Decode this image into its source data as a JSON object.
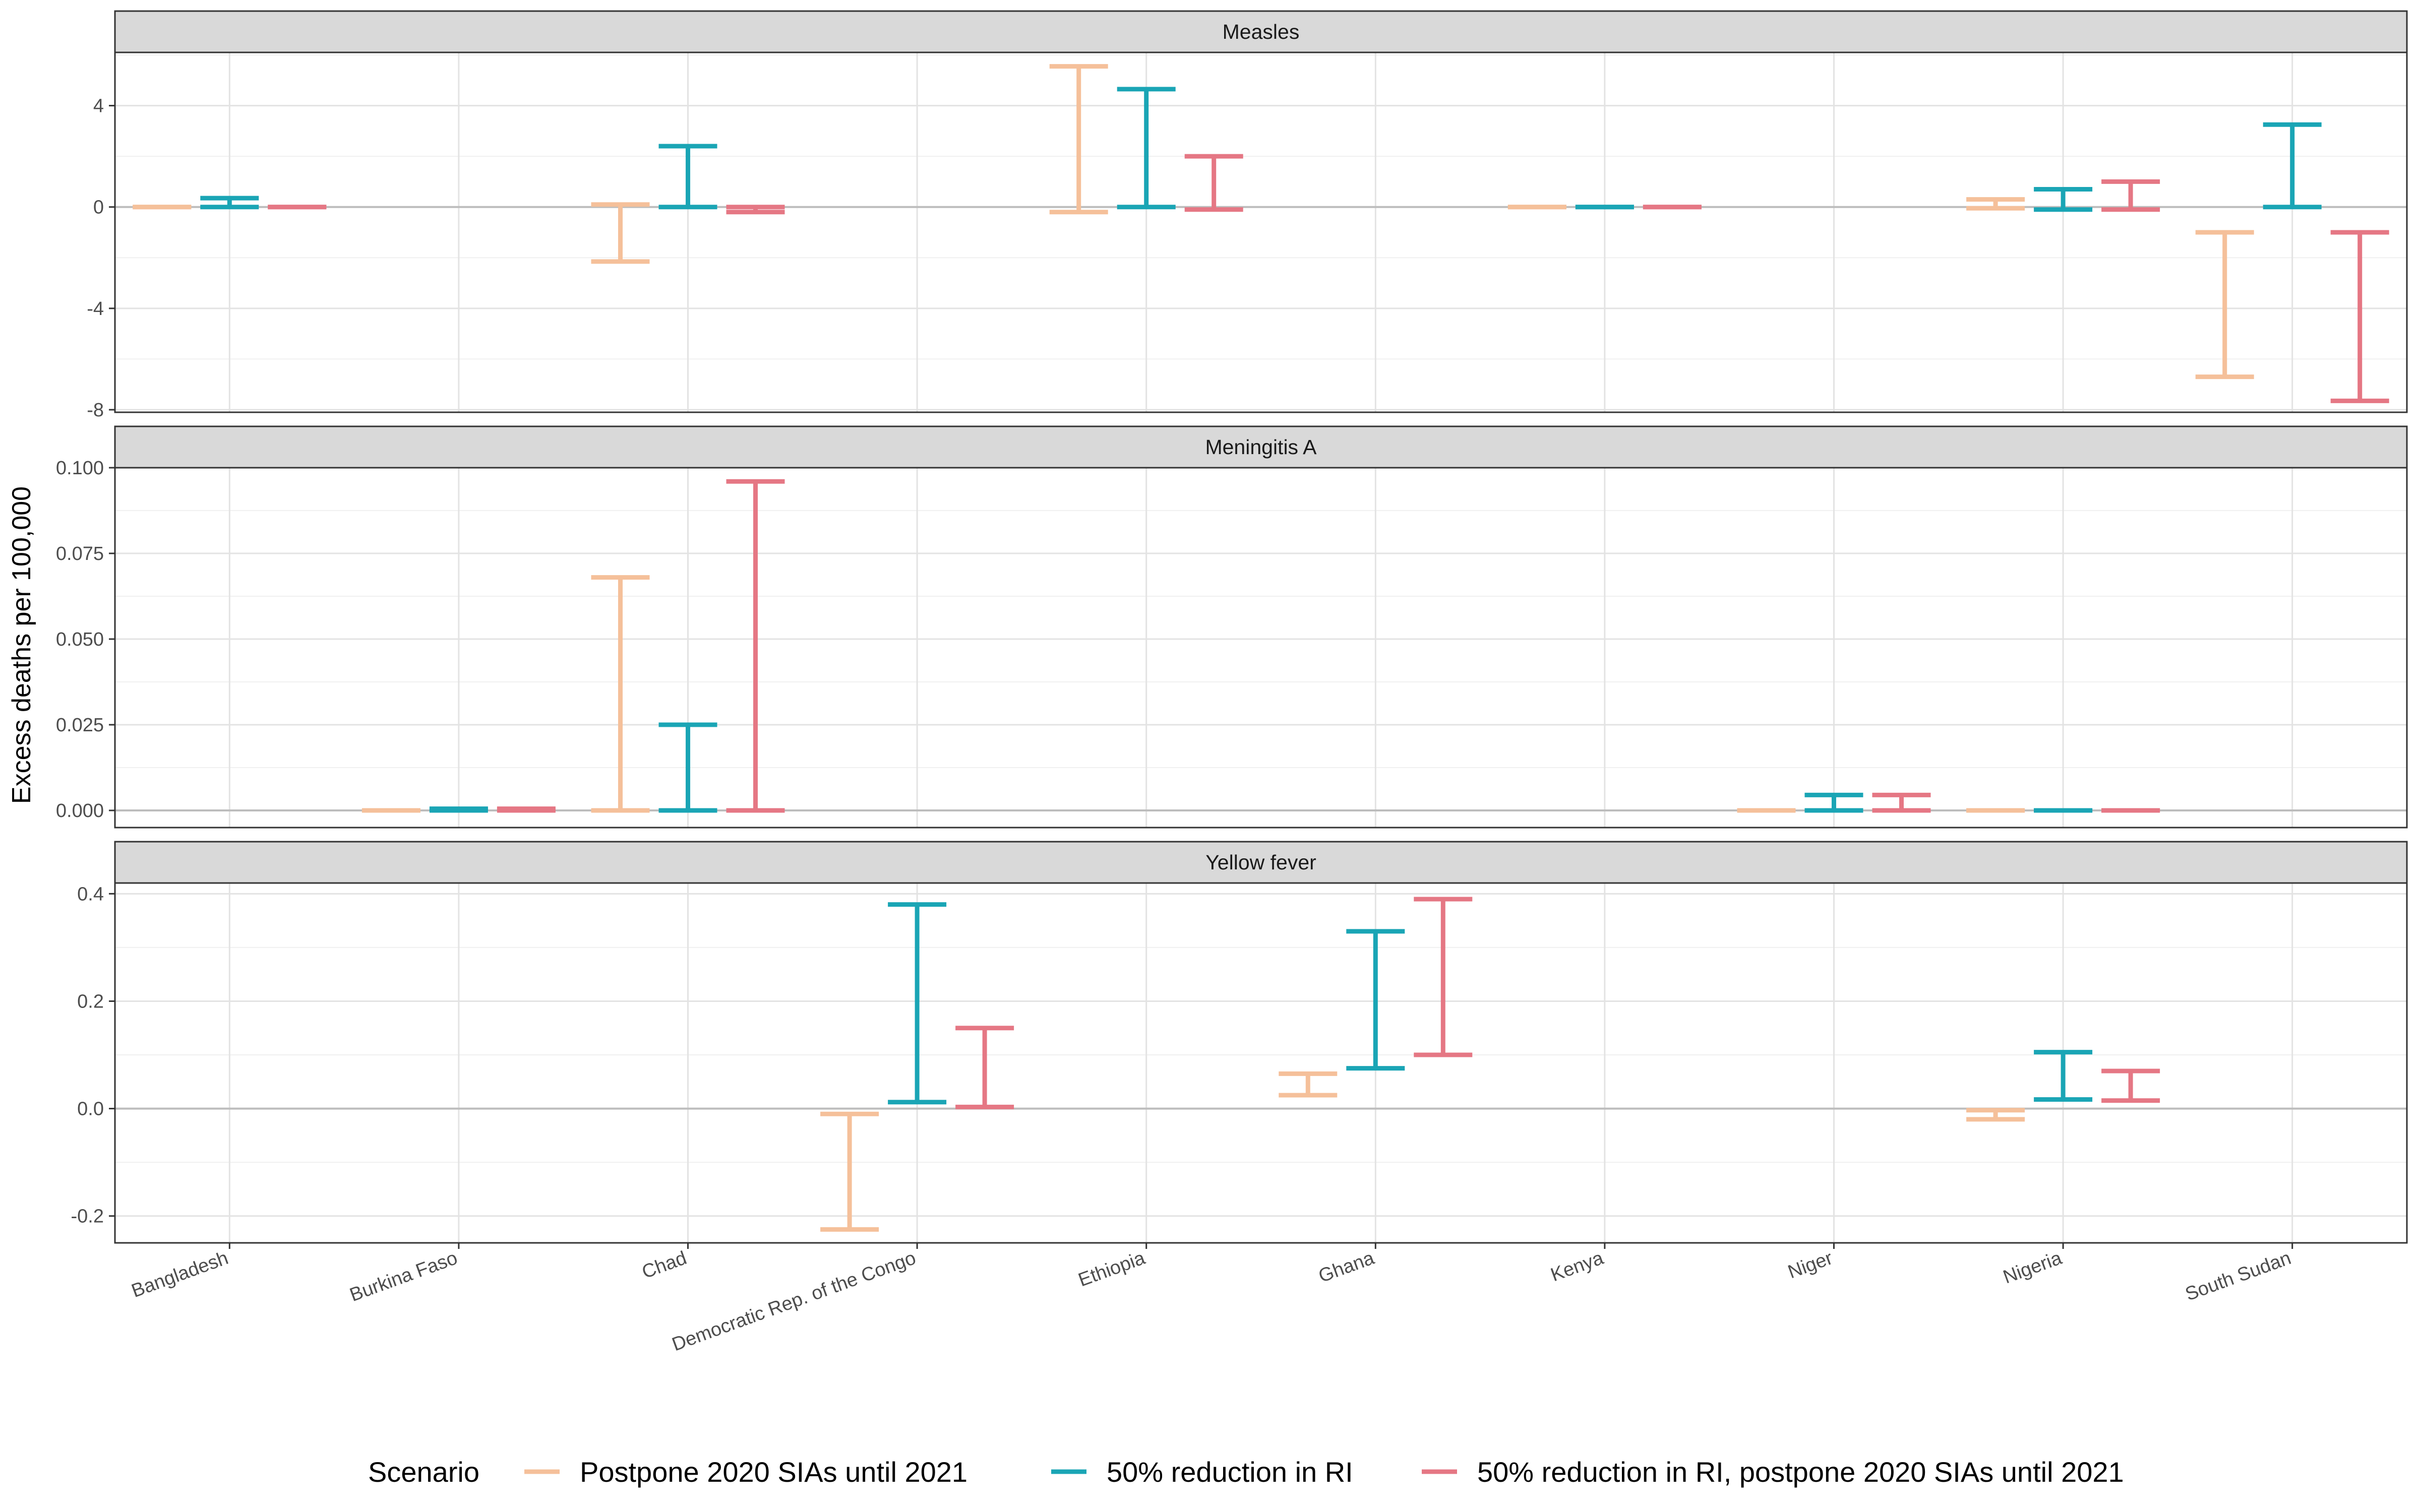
{
  "chart_data": {
    "type": "errorbar",
    "ylabel": "Excess deaths per 100,000",
    "xlabel": "",
    "categories": [
      "Bangladesh",
      "Burkina Faso",
      "Chad",
      "Democratic Rep. of the Congo",
      "Ethiopia",
      "Ghana",
      "Kenya",
      "Niger",
      "Nigeria",
      "South Sudan"
    ],
    "legend": {
      "title": "Scenario",
      "position": "bottom",
      "entries": [
        {
          "name": "Postpone 2020 SIAs until 2021",
          "color": "#F5C09A"
        },
        {
          "name": "50% reduction in RI",
          "color": "#1AA5B5"
        },
        {
          "name": "50% reduction in RI, postpone 2020 SIAs until 2021",
          "color": "#E57784"
        }
      ]
    },
    "grid": true,
    "panels": [
      {
        "title": "Measles",
        "ylim": [
          -8.1,
          6.1
        ],
        "yticks": [
          {
            "v": 4,
            "label": "4"
          },
          {
            "v": 0,
            "label": "0"
          },
          {
            "v": -4,
            "label": "-4"
          },
          {
            "v": -8,
            "label": "-8"
          }
        ],
        "ybreaks_minor": [
          6,
          2,
          -2,
          -6
        ],
        "bars": [
          {
            "category": "Bangladesh",
            "series": 0,
            "low": 0.0,
            "high": 0.0
          },
          {
            "category": "Bangladesh",
            "series": 1,
            "low": 0.0,
            "high": 0.35
          },
          {
            "category": "Bangladesh",
            "series": 2,
            "low": 0.0,
            "high": 0.0
          },
          {
            "category": "Chad",
            "series": 0,
            "low": -2.15,
            "high": 0.1
          },
          {
            "category": "Chad",
            "series": 1,
            "low": 0.0,
            "high": 2.4
          },
          {
            "category": "Chad",
            "series": 2,
            "low": -0.2,
            "high": 0.0
          },
          {
            "category": "Ethiopia",
            "series": 0,
            "low": -0.2,
            "high": 5.55
          },
          {
            "category": "Ethiopia",
            "series": 1,
            "low": 0.0,
            "high": 4.65
          },
          {
            "category": "Ethiopia",
            "series": 2,
            "low": -0.1,
            "high": 2.0
          },
          {
            "category": "Kenya",
            "series": 0,
            "low": 0.0,
            "high": 0.0
          },
          {
            "category": "Kenya",
            "series": 1,
            "low": 0.0,
            "high": 0.0
          },
          {
            "category": "Kenya",
            "series": 2,
            "low": 0.0,
            "high": 0.0
          },
          {
            "category": "Nigeria",
            "series": 0,
            "low": -0.05,
            "high": 0.3
          },
          {
            "category": "Nigeria",
            "series": 1,
            "low": -0.1,
            "high": 0.7
          },
          {
            "category": "Nigeria",
            "series": 2,
            "low": -0.1,
            "high": 1.0
          },
          {
            "category": "South Sudan",
            "series": 0,
            "low": -6.7,
            "high": -1.0
          },
          {
            "category": "South Sudan",
            "series": 1,
            "low": 0.0,
            "high": 3.25
          },
          {
            "category": "South Sudan",
            "series": 2,
            "low": -7.65,
            "high": -1.0
          }
        ]
      },
      {
        "title": "Meningitis A",
        "ylim": [
          -0.005,
          0.1
        ],
        "yticks": [
          {
            "v": 0.1,
            "label": "0.100"
          },
          {
            "v": 0.075,
            "label": "0.075"
          },
          {
            "v": 0.05,
            "label": "0.050"
          },
          {
            "v": 0.025,
            "label": "0.025"
          },
          {
            "v": 0.0,
            "label": "0.000"
          }
        ],
        "ybreaks_minor": [
          0.0875,
          0.0625,
          0.0375,
          0.0125
        ],
        "bars": [
          {
            "category": "Burkina Faso",
            "series": 0,
            "low": 0.0,
            "high": 0.0
          },
          {
            "category": "Burkina Faso",
            "series": 1,
            "low": 0.0,
            "high": 0.0005
          },
          {
            "category": "Burkina Faso",
            "series": 2,
            "low": 0.0,
            "high": 0.0005
          },
          {
            "category": "Chad",
            "series": 0,
            "low": 0.0,
            "high": 0.068
          },
          {
            "category": "Chad",
            "series": 1,
            "low": 0.0,
            "high": 0.025
          },
          {
            "category": "Chad",
            "series": 2,
            "low": 0.0,
            "high": 0.096
          },
          {
            "category": "Niger",
            "series": 0,
            "low": 0.0,
            "high": 0.0
          },
          {
            "category": "Niger",
            "series": 1,
            "low": 0.0,
            "high": 0.0045
          },
          {
            "category": "Niger",
            "series": 2,
            "low": 0.0,
            "high": 0.0045
          },
          {
            "category": "Nigeria",
            "series": 0,
            "low": 0.0,
            "high": 0.0
          },
          {
            "category": "Nigeria",
            "series": 1,
            "low": 0.0,
            "high": 0.0
          },
          {
            "category": "Nigeria",
            "series": 2,
            "low": 0.0,
            "high": 0.0
          }
        ]
      },
      {
        "title": "Yellow fever",
        "ylim": [
          -0.25,
          0.42
        ],
        "yticks": [
          {
            "v": 0.4,
            "label": "0.4"
          },
          {
            "v": 0.2,
            "label": "0.2"
          },
          {
            "v": 0.0,
            "label": "0.0"
          },
          {
            "v": -0.2,
            "label": "-0.2"
          }
        ],
        "ybreaks_minor": [
          0.3,
          0.1,
          -0.1
        ],
        "bars": [
          {
            "category": "Democratic Rep. of the Congo",
            "series": 0,
            "low": -0.225,
            "high": -0.01
          },
          {
            "category": "Democratic Rep. of the Congo",
            "series": 1,
            "low": 0.012,
            "high": 0.38
          },
          {
            "category": "Democratic Rep. of the Congo",
            "series": 2,
            "low": 0.003,
            "high": 0.15
          },
          {
            "category": "Ghana",
            "series": 0,
            "low": 0.025,
            "high": 0.065
          },
          {
            "category": "Ghana",
            "series": 1,
            "low": 0.075,
            "high": 0.33
          },
          {
            "category": "Ghana",
            "series": 2,
            "low": 0.1,
            "high": 0.39
          },
          {
            "category": "Nigeria",
            "series": 0,
            "low": -0.02,
            "high": -0.003
          },
          {
            "category": "Nigeria",
            "series": 1,
            "low": 0.017,
            "high": 0.105
          },
          {
            "category": "Nigeria",
            "series": 2,
            "low": 0.015,
            "high": 0.07
          }
        ]
      }
    ]
  }
}
